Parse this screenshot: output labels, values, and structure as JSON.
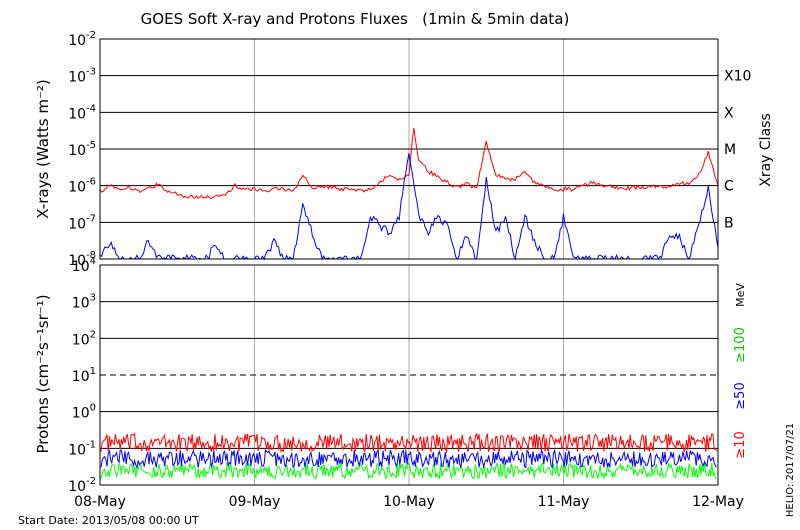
{
  "title": "GOES Soft X-ray and Protons Fluxes   (1min & 5min data)",
  "start_date": "Start Date: 2013/05/08 00:00 UT",
  "credit": "HELIO: 2017/07/21",
  "colors": {
    "xray_long": "#ff0000",
    "xray_short": "#0000ff",
    "p10": "#ff0000",
    "p50": "#0000ff",
    "p100": "#00ff00",
    "day_grid": "#aaaaaa"
  },
  "chart_data": [
    {
      "type": "line",
      "title": "",
      "ylabel": "X-rays (Watts m⁻²)",
      "y_scale": "log",
      "ylim": [
        1e-08,
        0.01
      ],
      "y_ticks": [
        {
          "value": 1e-08,
          "base": "10",
          "exp": "-8"
        },
        {
          "value": 1e-07,
          "base": "10",
          "exp": "-7"
        },
        {
          "value": 1e-06,
          "base": "10",
          "exp": "-6"
        },
        {
          "value": 1e-05,
          "base": "10",
          "exp": "-5"
        },
        {
          "value": 0.0001,
          "base": "10",
          "exp": "-4"
        },
        {
          "value": 0.001,
          "base": "10",
          "exp": "-3"
        },
        {
          "value": 0.01,
          "base": "10",
          "exp": "-2"
        }
      ],
      "right_axis_label": "Xray Class",
      "right_ticks": [
        {
          "label": "B",
          "value": 1e-07
        },
        {
          "label": "C",
          "value": 1e-06
        },
        {
          "label": "M",
          "value": 1e-05
        },
        {
          "label": "X",
          "value": 0.0001
        },
        {
          "label": "X10",
          "value": 0.001
        }
      ],
      "x_label": "",
      "xlim": [
        "2013-05-08",
        "2013-05-12"
      ],
      "x_ticks": [
        "08-May",
        "09-May",
        "10-May",
        "11-May",
        "12-May"
      ],
      "series": [
        {
          "color": "#ff0000",
          "x": [
            "2013-05-08T00:00",
            "2013-05-08T01:30",
            "2013-05-08T03:00",
            "2013-05-08T04:30",
            "2013-05-08T06:00",
            "2013-05-08T07:30",
            "2013-05-08T09:00",
            "2013-05-08T10:30",
            "2013-05-08T12:00",
            "2013-05-08T13:30",
            "2013-05-08T15:00",
            "2013-05-08T16:30",
            "2013-05-08T18:00",
            "2013-05-08T19:30",
            "2013-05-08T21:00",
            "2013-05-08T22:30",
            "2013-05-09T00:00",
            "2013-05-09T01:30",
            "2013-05-09T03:00",
            "2013-05-09T04:30",
            "2013-05-09T06:00",
            "2013-05-09T07:30",
            "2013-05-09T09:00",
            "2013-05-09T10:30",
            "2013-05-09T12:00",
            "2013-05-09T13:30",
            "2013-05-09T15:00",
            "2013-05-09T16:30",
            "2013-05-09T18:00",
            "2013-05-09T19:30",
            "2013-05-09T21:00",
            "2013-05-09T22:30",
            "2013-05-10T00:00",
            "2013-05-10T00:45",
            "2013-05-10T01:30",
            "2013-05-10T03:00",
            "2013-05-10T04:30",
            "2013-05-10T06:00",
            "2013-05-10T07:30",
            "2013-05-10T09:00",
            "2013-05-10T10:30",
            "2013-05-10T12:00",
            "2013-05-10T13:30",
            "2013-05-10T15:00",
            "2013-05-10T16:30",
            "2013-05-10T18:00",
            "2013-05-10T19:30",
            "2013-05-10T21:00",
            "2013-05-10T22:30",
            "2013-05-11T00:00",
            "2013-05-11T01:30",
            "2013-05-11T03:00",
            "2013-05-11T04:30",
            "2013-05-11T06:00",
            "2013-05-11T07:30",
            "2013-05-11T09:00",
            "2013-05-11T10:30",
            "2013-05-11T12:00",
            "2013-05-11T13:30",
            "2013-05-11T15:00",
            "2013-05-11T16:30",
            "2013-05-11T18:00",
            "2013-05-11T19:30",
            "2013-05-11T21:00",
            "2013-05-11T22:30",
            "2013-05-12T00:00"
          ],
          "y": [
            7e-07,
            1e-06,
            8e-07,
            9e-07,
            7e-07,
            8e-07,
            1.1e-06,
            7e-07,
            6e-07,
            5e-07,
            5e-07,
            5e-07,
            5e-07,
            6e-07,
            1e-06,
            8e-07,
            8e-07,
            7e-07,
            8e-07,
            8e-07,
            7e-07,
            2e-06,
            9e-07,
            1e-06,
            9e-07,
            8e-07,
            8e-07,
            7e-07,
            8e-07,
            1.2e-06,
            2e-06,
            1.5e-06,
            2e-06,
            4e-05,
            5e-06,
            2.5e-06,
            1.8e-06,
            1.2e-06,
            9e-07,
            1.1e-06,
            8e-07,
            1.5e-05,
            2e-06,
            1.5e-06,
            1.5e-06,
            2.5e-06,
            1.2e-06,
            1e-06,
            8e-07,
            8e-07,
            8e-07,
            1e-06,
            1.2e-06,
            1e-06,
            1e-06,
            8e-07,
            9e-07,
            9e-07,
            1e-06,
            9e-07,
            1e-06,
            1.2e-06,
            1.2e-06,
            2e-06,
            8e-06,
            1e-06
          ]
        },
        {
          "color": "#0000ff",
          "x": [
            "2013-05-08T00:00",
            "2013-05-08T01:30",
            "2013-05-08T03:00",
            "2013-05-08T04:30",
            "2013-05-08T06:00",
            "2013-05-08T07:30",
            "2013-05-08T09:00",
            "2013-05-08T10:30",
            "2013-05-08T12:00",
            "2013-05-08T13:30",
            "2013-05-08T15:00",
            "2013-05-08T16:30",
            "2013-05-08T18:00",
            "2013-05-08T19:30",
            "2013-05-08T21:00",
            "2013-05-08T22:30",
            "2013-05-09T00:00",
            "2013-05-09T01:30",
            "2013-05-09T03:00",
            "2013-05-09T04:30",
            "2013-05-09T06:00",
            "2013-05-09T07:30",
            "2013-05-09T09:00",
            "2013-05-09T10:30",
            "2013-05-09T12:00",
            "2013-05-09T13:30",
            "2013-05-09T15:00",
            "2013-05-09T16:30",
            "2013-05-09T18:00",
            "2013-05-09T19:30",
            "2013-05-09T21:00",
            "2013-05-09T22:30",
            "2013-05-10T00:00",
            "2013-05-10T00:45",
            "2013-05-10T01:30",
            "2013-05-10T03:00",
            "2013-05-10T04:30",
            "2013-05-10T06:00",
            "2013-05-10T07:30",
            "2013-05-10T09:00",
            "2013-05-10T10:30",
            "2013-05-10T12:00",
            "2013-05-10T13:30",
            "2013-05-10T15:00",
            "2013-05-10T16:30",
            "2013-05-10T18:00",
            "2013-05-10T19:30",
            "2013-05-10T21:00",
            "2013-05-10T22:30",
            "2013-05-11T00:00",
            "2013-05-11T01:30",
            "2013-05-11T03:00",
            "2013-05-11T04:30",
            "2013-05-11T06:00",
            "2013-05-11T07:30",
            "2013-05-11T09:00",
            "2013-05-11T10:30",
            "2013-05-11T12:00",
            "2013-05-11T13:30",
            "2013-05-11T15:00",
            "2013-05-11T16:30",
            "2013-05-11T18:00",
            "2013-05-11T19:30",
            "2013-05-11T21:00",
            "2013-05-11T22:30",
            "2013-05-12T00:00"
          ],
          "y": [
            1e-08,
            3e-08,
            1e-08,
            1e-08,
            1e-08,
            3e-08,
            1e-08,
            1e-08,
            1e-08,
            1e-08,
            1e-08,
            1e-08,
            2.5e-08,
            1e-08,
            1e-08,
            1e-08,
            1e-08,
            1e-08,
            3e-08,
            1e-08,
            1e-08,
            3e-07,
            5e-08,
            1e-08,
            1e-08,
            1e-08,
            1e-08,
            1e-08,
            1.5e-07,
            8e-08,
            5e-08,
            1.5e-07,
            8e-06,
            1.2e-06,
            1.5e-07,
            5e-08,
            1.5e-07,
            8e-08,
            1e-08,
            5e-08,
            1e-08,
            1.5e-06,
            5e-08,
            1.5e-07,
            1e-08,
            1.5e-07,
            3e-08,
            1e-08,
            1e-08,
            1.5e-07,
            1e-08,
            1e-08,
            1e-08,
            1e-08,
            1e-08,
            1e-08,
            1e-08,
            1e-08,
            1e-08,
            1e-08,
            5e-08,
            4e-08,
            1e-08,
            8e-08,
            8e-07,
            2e-08
          ]
        }
      ]
    },
    {
      "type": "line",
      "title": "",
      "ylabel": "Protons (cm⁻²s⁻¹sr⁻¹)",
      "y_scale": "log",
      "ylim": [
        0.01,
        10000
      ],
      "y_ticks": [
        {
          "value": 0.01,
          "base": "10",
          "exp": "-2"
        },
        {
          "value": 0.1,
          "base": "10",
          "exp": "-1"
        },
        {
          "value": 1,
          "base": "10",
          "exp": "0"
        },
        {
          "value": 10,
          "base": "10",
          "exp": "1"
        },
        {
          "value": 100,
          "base": "10",
          "exp": "2"
        },
        {
          "value": 1000,
          "base": "10",
          "exp": "3"
        },
        {
          "value": 10000,
          "base": "10",
          "exp": "4"
        }
      ],
      "right_axis_label": "MeV",
      "threshold": 10,
      "x_label": "",
      "xlim": [
        "2013-05-08",
        "2013-05-12"
      ],
      "x_ticks": [
        "08-May",
        "09-May",
        "10-May",
        "11-May",
        "12-May"
      ],
      "series": [
        {
          "name": "≥10",
          "color": "#ff0000",
          "typical": 0.12,
          "range": [
            0.08,
            0.25
          ]
        },
        {
          "name": "≥50",
          "color": "#0000ff",
          "typical": 0.05,
          "range": [
            0.03,
            0.09
          ]
        },
        {
          "name": "≥100",
          "color": "#00ff00",
          "typical": 0.025,
          "range": [
            0.015,
            0.04
          ]
        }
      ]
    }
  ]
}
